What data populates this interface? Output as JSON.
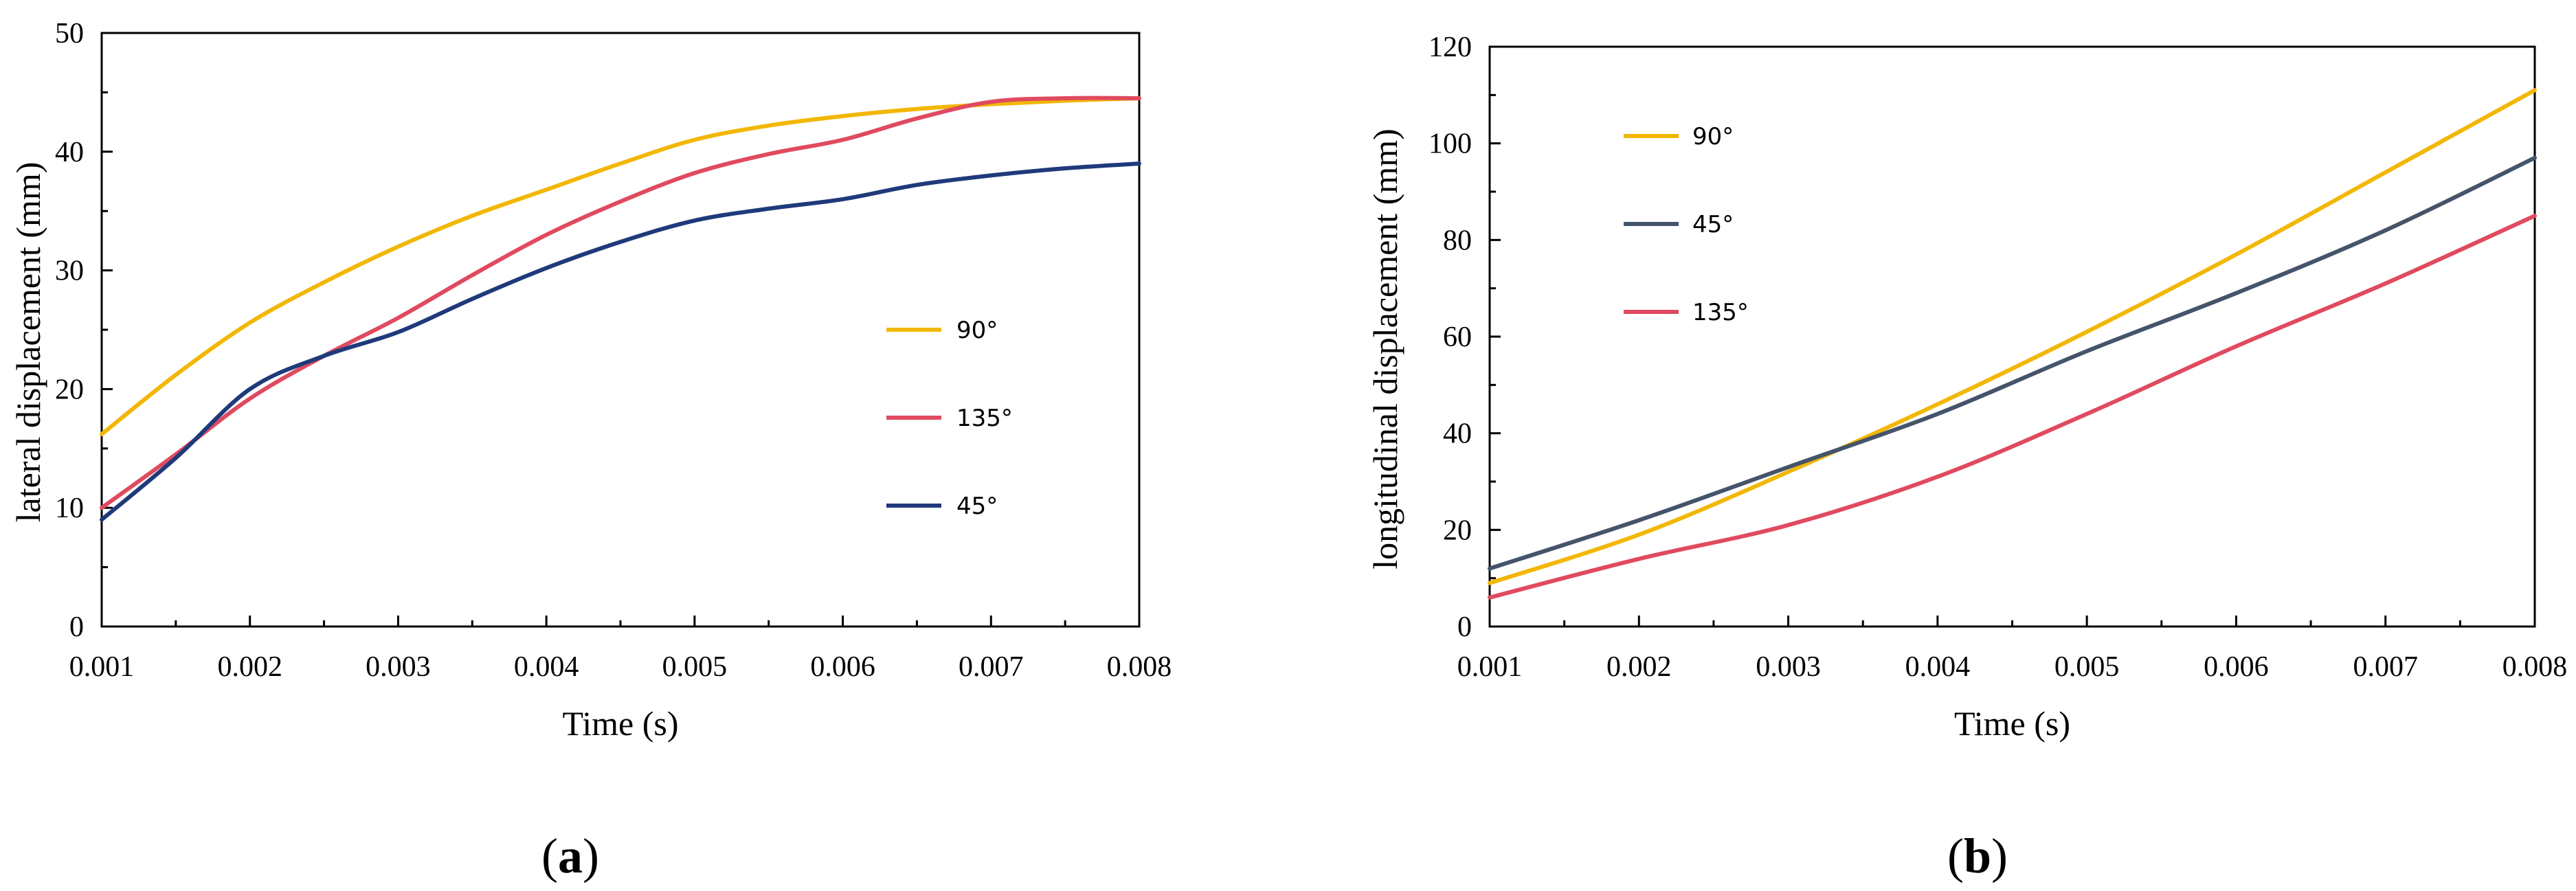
{
  "chart_data": [
    {
      "type": "line",
      "panel": "a",
      "caption": {
        "open": "(",
        "letter": "a",
        "close": ")"
      },
      "xlabel": "Time (s)",
      "ylabel": "lateral displacement (mm)",
      "xlim": [
        0.001,
        0.008
      ],
      "ylim": [
        0,
        50
      ],
      "xticks": [
        "0.001",
        "0.002",
        "0.003",
        "0.004",
        "0.005",
        "0.006",
        "0.007",
        "0.008"
      ],
      "yticks": [
        "0",
        "10",
        "20",
        "30",
        "40",
        "50"
      ],
      "legend_position": "right",
      "series": [
        {
          "name": "90°",
          "color": "#F2B705",
          "x": [
            0.001,
            0.0015,
            0.002,
            0.0025,
            0.003,
            0.0035,
            0.004,
            0.0045,
            0.005,
            0.0055,
            0.006,
            0.0065,
            0.007,
            0.0075,
            0.008
          ],
          "y": [
            16.2,
            21.2,
            25.6,
            29.0,
            32.0,
            34.6,
            36.8,
            39.0,
            41.0,
            42.2,
            43.0,
            43.6,
            44.0,
            44.3,
            44.5
          ]
        },
        {
          "name": "135°",
          "color": "#E04A5F",
          "x": [
            0.001,
            0.0015,
            0.002,
            0.0025,
            0.003,
            0.0035,
            0.004,
            0.0045,
            0.005,
            0.0055,
            0.006,
            0.0065,
            0.007,
            0.0075,
            0.008
          ],
          "y": [
            10.0,
            14.5,
            19.2,
            22.8,
            26.0,
            29.6,
            33.0,
            35.8,
            38.2,
            39.8,
            41.0,
            42.8,
            44.2,
            44.5,
            44.5
          ]
        },
        {
          "name": "45°",
          "color": "#1F3A7A",
          "x": [
            0.001,
            0.0015,
            0.002,
            0.0025,
            0.003,
            0.0035,
            0.004,
            0.0045,
            0.005,
            0.0055,
            0.006,
            0.0065,
            0.007,
            0.0075,
            0.008
          ],
          "y": [
            9.0,
            14.2,
            20.0,
            22.8,
            24.8,
            27.6,
            30.2,
            32.4,
            34.2,
            35.2,
            36.0,
            37.2,
            38.0,
            38.6,
            39.0
          ]
        }
      ]
    },
    {
      "type": "line",
      "panel": "b",
      "caption": {
        "open": "(",
        "letter": "b",
        "close": ")"
      },
      "xlabel": "Time (s)",
      "ylabel": "longitudinal displacement (mm)",
      "xlim": [
        0.001,
        0.008
      ],
      "ylim": [
        0,
        120
      ],
      "xticks": [
        "0.001",
        "0.002",
        "0.003",
        "0.004",
        "0.005",
        "0.006",
        "0.007",
        "0.008"
      ],
      "yticks": [
        "0",
        "20",
        "40",
        "60",
        "80",
        "100",
        "120"
      ],
      "legend_position": "top-left",
      "series": [
        {
          "name": "90°",
          "color": "#F2B705",
          "x": [
            0.001,
            0.002,
            0.003,
            0.004,
            0.005,
            0.006,
            0.007,
            0.008
          ],
          "y": [
            9,
            19,
            32,
            46,
            61,
            77,
            94,
            111
          ]
        },
        {
          "name": "45°",
          "color": "#44546A",
          "x": [
            0.001,
            0.002,
            0.003,
            0.004,
            0.005,
            0.006,
            0.007,
            0.008
          ],
          "y": [
            12,
            22,
            33,
            44,
            57,
            69,
            82,
            97
          ]
        },
        {
          "name": "135°",
          "color": "#E04A5F",
          "x": [
            0.001,
            0.002,
            0.003,
            0.004,
            0.005,
            0.006,
            0.007,
            0.008
          ],
          "y": [
            6,
            14,
            21,
            31,
            44,
            58,
            71,
            85
          ]
        }
      ]
    }
  ]
}
